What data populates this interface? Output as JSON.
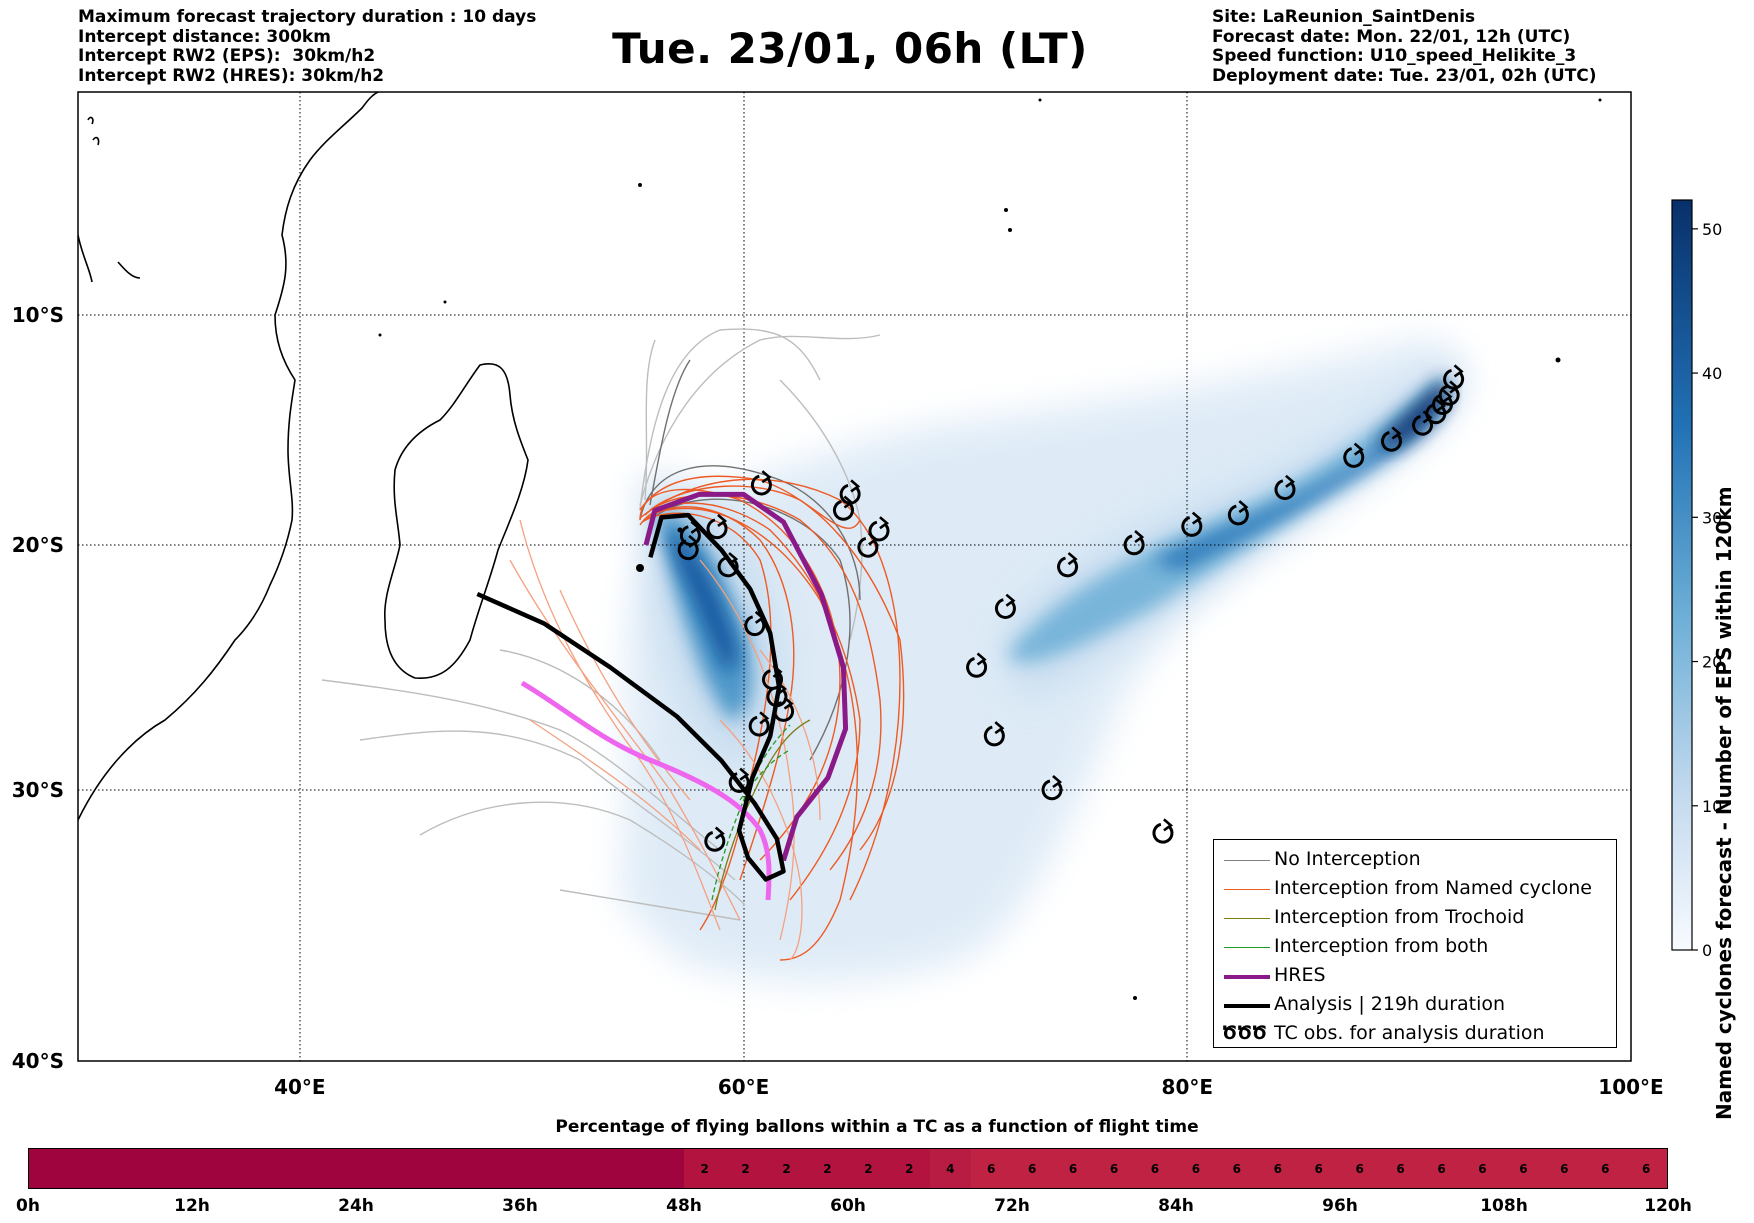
{
  "header_left": [
    "Maximum forecast trajectory duration : 10 days",
    "Intercept distance: 300km",
    "Intercept RW2 (EPS):  30km/h2",
    "Intercept RW2 (HRES): 30km/h2"
  ],
  "header_right": [
    "Site: LaReunion_SaintDenis",
    "Forecast date: Mon. 22/01, 12h (UTC)",
    "Speed function: U10_speed_Helikite_3",
    "Deployment date: Tue. 23/01, 02h (UTC)"
  ],
  "title": "Tue. 23/01, 06h (LT)",
  "map": {
    "lon_range": [
      30,
      100
    ],
    "lat_range": [
      -40,
      0
    ],
    "lon_ticks": [
      {
        "value": 40,
        "label": "40°E"
      },
      {
        "value": 60,
        "label": "60°E"
      },
      {
        "value": 80,
        "label": "80°E"
      },
      {
        "value": 100,
        "label": "100°E"
      }
    ],
    "lat_ticks": [
      {
        "value": -10,
        "label": "10°S"
      },
      {
        "value": -20,
        "label": "20°S"
      },
      {
        "value": -30,
        "label": "30°S"
      },
      {
        "value": -40,
        "label": "40°S"
      }
    ],
    "grid": "dotted"
  },
  "chart_data": {
    "type": "map",
    "eps_density_core": [
      [
        55.8,
        -19.4
      ],
      [
        57.5,
        -19.8
      ],
      [
        59.5,
        -21
      ],
      [
        60.5,
        -23.5
      ],
      [
        61.5,
        -26.5
      ]
    ],
    "eps_density_east": [
      [
        71,
        -24.8
      ],
      [
        75,
        -21.8
      ],
      [
        80,
        -19.6
      ],
      [
        84,
        -18.2
      ],
      [
        87,
        -16.8
      ],
      [
        89.5,
        -15.6
      ],
      [
        91.5,
        -13.8
      ]
    ],
    "analysis_track": [
      [
        48,
        -22
      ],
      [
        51,
        -23.2
      ],
      [
        54,
        -25
      ],
      [
        57,
        -27
      ],
      [
        59,
        -28.8
      ],
      [
        60.5,
        -30.5
      ],
      [
        61.5,
        -31.8
      ],
      [
        61.8,
        -33
      ],
      [
        61,
        -33.3
      ],
      [
        60.2,
        -32.5
      ],
      [
        59.8,
        -31.5
      ],
      [
        60.4,
        -29.5
      ],
      [
        61.2,
        -27.8
      ],
      [
        61.6,
        -25.8
      ],
      [
        61.2,
        -23.6
      ],
      [
        60.3,
        -21.8
      ],
      [
        59,
        -20.2
      ],
      [
        57.5,
        -18.7
      ],
      [
        56.3,
        -18.8
      ],
      [
        55.8,
        -20.5
      ]
    ],
    "hres_track": [
      [
        55.6,
        -20
      ],
      [
        56,
        -18.5
      ],
      [
        58,
        -17.8
      ],
      [
        60,
        -17.8
      ],
      [
        61.8,
        -19
      ],
      [
        63.5,
        -22
      ],
      [
        64.5,
        -25
      ],
      [
        64.6,
        -27.5
      ],
      [
        63.8,
        -29.5
      ],
      [
        62.4,
        -31
      ],
      [
        61.8,
        -32.6
      ]
    ],
    "tc_obs": [
      [
        57.5,
        -20.2
      ],
      [
        57.6,
        -19.6
      ],
      [
        58.8,
        -19.3
      ],
      [
        59.3,
        -20.9
      ],
      [
        60.5,
        -23.3
      ],
      [
        61.3,
        -25.5
      ],
      [
        61.5,
        -26.2
      ],
      [
        61.8,
        -26.8
      ],
      [
        60.7,
        -27.4
      ],
      [
        59.8,
        -29.7
      ],
      [
        58.7,
        -31.9
      ],
      [
        60.8,
        -17.4
      ],
      [
        64.5,
        -18.5
      ],
      [
        64.8,
        -17.8
      ],
      [
        65.6,
        -20.1
      ],
      [
        66.1,
        -19.4
      ],
      [
        92,
        -12.8
      ],
      [
        91.8,
        -13.5
      ],
      [
        91.5,
        -13.9
      ],
      [
        91.2,
        -14.3
      ],
      [
        90.6,
        -14.8
      ],
      [
        89.2,
        -15.5
      ],
      [
        87.5,
        -16.2
      ],
      [
        84.4,
        -17.6
      ],
      [
        82.3,
        -18.7
      ],
      [
        80.2,
        -19.2
      ],
      [
        77.6,
        -20
      ],
      [
        74.6,
        -20.9
      ],
      [
        71.8,
        -22.6
      ],
      [
        70.5,
        -25
      ],
      [
        71.3,
        -27.8
      ],
      [
        73.9,
        -30
      ],
      [
        78.9,
        -31.6
      ]
    ]
  },
  "legend": [
    {
      "label": "No Interception",
      "color": "#808080",
      "width": 1.5,
      "kind": "line"
    },
    {
      "label": "Interception from Named cyclone",
      "color": "#ee5a24",
      "width": 1.5,
      "kind": "line"
    },
    {
      "label": "Interception from Trochoid",
      "color": "#7d7d16",
      "width": 1.5,
      "kind": "line"
    },
    {
      "label": "Interception from both",
      "color": "#229922",
      "width": 1.5,
      "kind": "line"
    },
    {
      "label": "HRES",
      "color": "#8b1a89",
      "width": 4,
      "kind": "line"
    },
    {
      "label": "Analysis | 219h duration",
      "color": "#000000",
      "width": 4,
      "kind": "line"
    },
    {
      "label": "TC obs. for analysis duration",
      "color": "#000000",
      "kind": "symbol",
      "symbol": "ԾԾԾ"
    }
  ],
  "colorbar": {
    "title": "Named cyclones forecast - Number of EPS within 120km",
    "range": [
      0,
      52
    ],
    "ticks": [
      0,
      10,
      20,
      30,
      40,
      50
    ],
    "colors": [
      "#f7fbff",
      "#08306b"
    ]
  },
  "time_bar": {
    "title": "Percentage of flying ballons within a TC as a function of flight time",
    "cells": [
      {
        "from": 0,
        "to": 48,
        "value": "",
        "color": "#a0043f"
      },
      {
        "from": 48,
        "to": 51,
        "value": "2",
        "color": "#b2143f"
      },
      {
        "from": 51,
        "to": 54,
        "value": "2",
        "color": "#b2143f"
      },
      {
        "from": 54,
        "to": 57,
        "value": "2",
        "color": "#b2143f"
      },
      {
        "from": 57,
        "to": 60,
        "value": "2",
        "color": "#b2143f"
      },
      {
        "from": 60,
        "to": 63,
        "value": "2",
        "color": "#b2143f"
      },
      {
        "from": 63,
        "to": 66,
        "value": "2",
        "color": "#b2143f"
      },
      {
        "from": 66,
        "to": 69,
        "value": "4",
        "color": "#b91c42"
      },
      {
        "from": 69,
        "to": 72,
        "value": "6",
        "color": "#c02244"
      },
      {
        "from": 72,
        "to": 75,
        "value": "6",
        "color": "#c02244"
      },
      {
        "from": 75,
        "to": 78,
        "value": "6",
        "color": "#c02244"
      },
      {
        "from": 78,
        "to": 81,
        "value": "6",
        "color": "#c02244"
      },
      {
        "from": 81,
        "to": 84,
        "value": "6",
        "color": "#c02244"
      },
      {
        "from": 84,
        "to": 87,
        "value": "6",
        "color": "#c02244"
      },
      {
        "from": 87,
        "to": 90,
        "value": "6",
        "color": "#c02244"
      },
      {
        "from": 90,
        "to": 93,
        "value": "6",
        "color": "#c02244"
      },
      {
        "from": 93,
        "to": 96,
        "value": "6",
        "color": "#c02244"
      },
      {
        "from": 96,
        "to": 99,
        "value": "6",
        "color": "#c02244"
      },
      {
        "from": 99,
        "to": 102,
        "value": "6",
        "color": "#c02244"
      },
      {
        "from": 102,
        "to": 105,
        "value": "6",
        "color": "#c02244"
      },
      {
        "from": 105,
        "to": 108,
        "value": "6",
        "color": "#c02244"
      },
      {
        "from": 108,
        "to": 111,
        "value": "6",
        "color": "#c02244"
      },
      {
        "from": 111,
        "to": 114,
        "value": "6",
        "color": "#c02244"
      },
      {
        "from": 114,
        "to": 117,
        "value": "6",
        "color": "#c02244"
      },
      {
        "from": 117,
        "to": 120,
        "value": "6",
        "color": "#c02244"
      }
    ],
    "labels": [
      "0h",
      "12h",
      "24h",
      "36h",
      "48h",
      "60h",
      "72h",
      "84h",
      "96h",
      "108h",
      "120h"
    ]
  }
}
